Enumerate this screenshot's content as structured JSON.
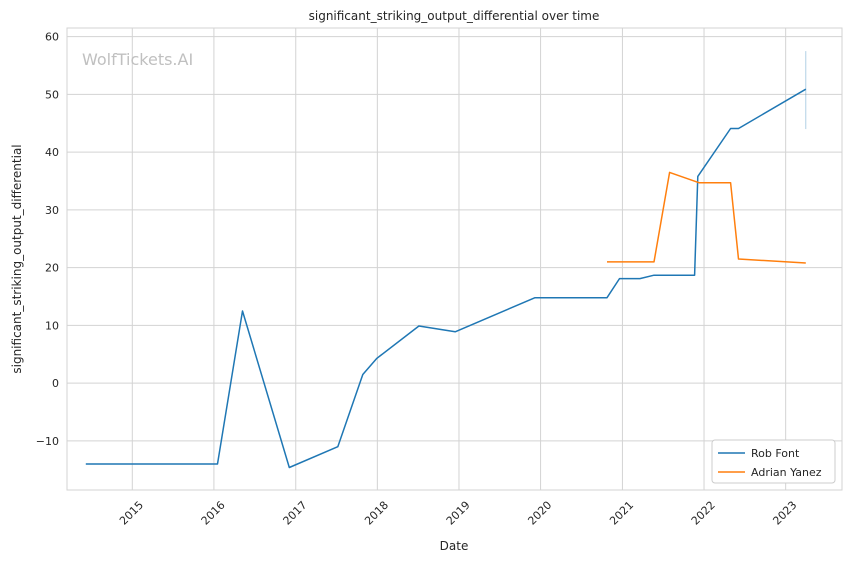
{
  "chart_data": {
    "type": "line",
    "title": "significant_striking_output_differential over time",
    "xlabel": "Date",
    "ylabel": "significant_striking_output_differential",
    "watermark": "WolfTickets.AI",
    "xlim": [
      "2014-03-15",
      "2023-09-10"
    ],
    "ylim": [
      -18.5,
      61.5
    ],
    "x_ticks": [
      "2015-01-01",
      "2016-01-01",
      "2017-01-01",
      "2018-01-01",
      "2019-01-01",
      "2020-01-01",
      "2021-01-01",
      "2022-01-01",
      "2023-01-01"
    ],
    "x_tick_labels": [
      "2015",
      "2016",
      "2017",
      "2018",
      "2019",
      "2020",
      "2021",
      "2022",
      "2023"
    ],
    "y_ticks": [
      -10,
      0,
      10,
      20,
      30,
      40,
      50,
      60
    ],
    "y_tick_labels": [
      "−10",
      "0",
      "10",
      "20",
      "30",
      "40",
      "50",
      "60"
    ],
    "grid": true,
    "legend_position": "bottom-right",
    "series": [
      {
        "name": "Rob Font",
        "color": "#1f77b4",
        "x": [
          "2014-06-07",
          "2016-01-17",
          "2016-05-08",
          "2016-12-03",
          "2017-07-08",
          "2017-10-28",
          "2017-12-30",
          "2018-07-06",
          "2018-12-15",
          "2019-12-07",
          "2020-10-24",
          "2020-12-19",
          "2021-03-20",
          "2021-05-22",
          "2021-11-20",
          "2021-12-04",
          "2022-04-30",
          "2022-06-04",
          "2023-04-01"
        ],
        "y": [
          -14,
          -14,
          12.5,
          -14.6,
          -11,
          1.5,
          4.3,
          9.9,
          8.9,
          14.8,
          14.8,
          18.1,
          18.1,
          18.7,
          18.7,
          35.8,
          44.1,
          44.1,
          50.9
        ]
      },
      {
        "name": "Adrian Yanez",
        "color": "#ff7f0e",
        "x": [
          "2020-10-24",
          "2021-05-22",
          "2021-07-31",
          "2021-12-11",
          "2022-04-30",
          "2022-06-04",
          "2023-04-01"
        ],
        "y": [
          21,
          21,
          36.5,
          34.7,
          34.7,
          21.5,
          20.8
        ]
      }
    ],
    "error_bar": {
      "x": "2023-04-01",
      "low": 44,
      "high": 57.5,
      "color": "#1f77b4"
    }
  }
}
